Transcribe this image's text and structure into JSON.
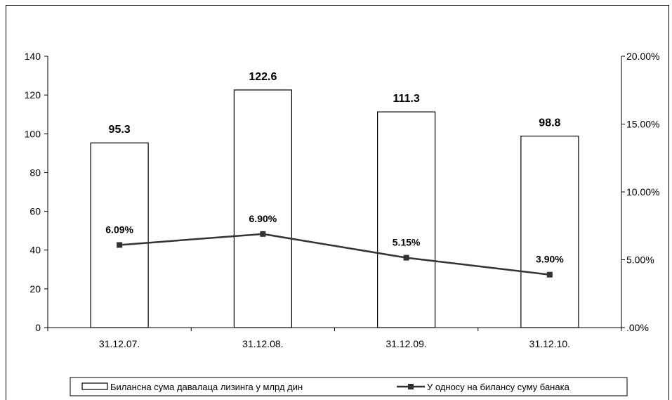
{
  "chart_data": {
    "type": "bar",
    "categories": [
      "31.12.07.",
      "31.12.08.",
      "31.12.09.",
      "31.12.10."
    ],
    "series": [
      {
        "name": "Билансна сума давалаца лизинга у млрд дин",
        "type": "bar",
        "axis": "left",
        "values": [
          95.3,
          122.6,
          111.3,
          98.8
        ],
        "labels": [
          "95.3",
          "122.6",
          "111.3",
          "98.8"
        ]
      },
      {
        "name": "У односу на билансу суму банака",
        "type": "line",
        "axis": "right",
        "values": [
          0.0609,
          0.069,
          0.0515,
          0.039
        ],
        "labels": [
          "6.09%",
          "6.90%",
          "5.15%",
          "3.90%"
        ]
      }
    ],
    "y_left": {
      "ylim": [
        0,
        140
      ],
      "ticks": [
        0,
        20,
        40,
        60,
        80,
        100,
        120,
        140
      ],
      "tick_labels": [
        "0",
        "20",
        "40",
        "60",
        "80",
        "100",
        "120",
        "140"
      ]
    },
    "y_right": {
      "ylim": [
        0,
        0.2
      ],
      "ticks": [
        0,
        0.05,
        0.1,
        0.15,
        0.2
      ],
      "tick_labels": [
        ".00%",
        "5.00%",
        "10.00%",
        "15.00%",
        "20.00%"
      ]
    },
    "grid": false,
    "legend_position": "bottom",
    "colors": {
      "bar_fill": "#ffffff",
      "bar_stroke": "#000000",
      "line": "#333333",
      "marker": "#333333"
    }
  }
}
